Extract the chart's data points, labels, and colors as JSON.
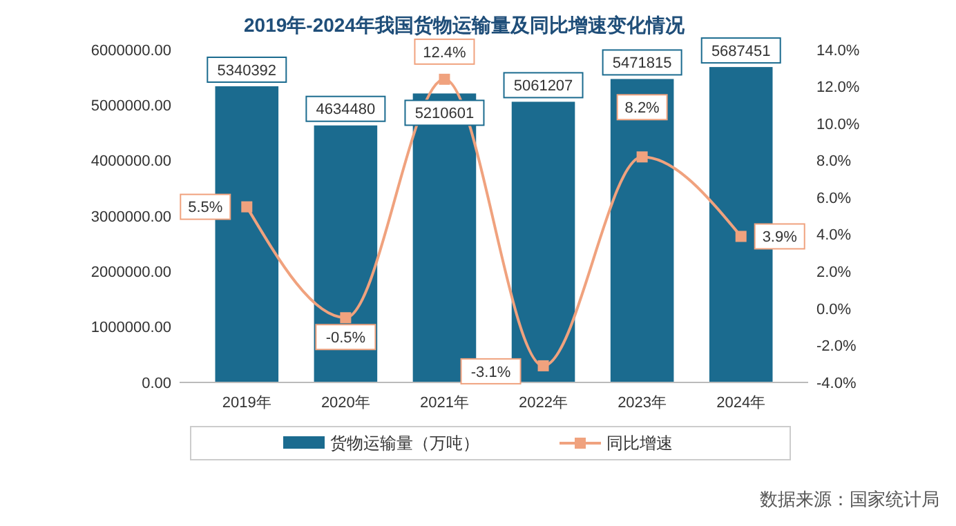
{
  "chart_data": {
    "type": "bar",
    "title": "2019年-2024年我国货物运输量及同比增速变化情况",
    "categories": [
      "2019年",
      "2020年",
      "2021年",
      "2022年",
      "2023年",
      "2024年"
    ],
    "series": [
      {
        "name": "货物运输量（万吨）",
        "color": "#1b6b8f",
        "values": [
          5340392,
          4634480,
          5210601,
          5061207,
          5471815,
          5687451
        ],
        "value_labels": [
          "5340392",
          "4634480",
          "5210601",
          "5061207",
          "5471815",
          "5687451"
        ]
      },
      {
        "name": "同比增速",
        "type": "line",
        "axis": "y2",
        "color": "#f0a27e",
        "values": [
          5.5,
          -0.5,
          12.4,
          -3.1,
          8.2,
          3.9
        ],
        "value_labels": [
          "5.5%",
          "-0.5%",
          "12.4%",
          "-3.1%",
          "8.2%",
          "3.9%"
        ]
      }
    ],
    "ylim": [
      0,
      6000000
    ],
    "yticks": [
      {
        "value": 0,
        "label": "0.00"
      },
      {
        "value": 1000000,
        "label": "1000000.00"
      },
      {
        "value": 2000000,
        "label": "2000000.00"
      },
      {
        "value": 3000000,
        "label": "3000000.00"
      },
      {
        "value": 4000000,
        "label": "4000000.00"
      },
      {
        "value": 5000000,
        "label": "5000000.00"
      },
      {
        "value": 6000000,
        "label": "6000000.00"
      }
    ],
    "y2lim": [
      -4,
      14
    ],
    "y2ticks": [
      {
        "value": -4,
        "label": "-4.0%"
      },
      {
        "value": -2,
        "label": "-2.0%"
      },
      {
        "value": 0,
        "label": "0.0%"
      },
      {
        "value": 2,
        "label": "2.0%"
      },
      {
        "value": 4,
        "label": "4.0%"
      },
      {
        "value": 6,
        "label": "6.0%"
      },
      {
        "value": 8,
        "label": "8.0%"
      },
      {
        "value": 10,
        "label": "10.0%"
      },
      {
        "value": 12,
        "label": "12.0%"
      },
      {
        "value": 14,
        "label": "14.0%"
      }
    ],
    "marker": "square",
    "legend": "bottom",
    "grid": false,
    "annotations": [
      "数据来源：国家统计局"
    ]
  }
}
